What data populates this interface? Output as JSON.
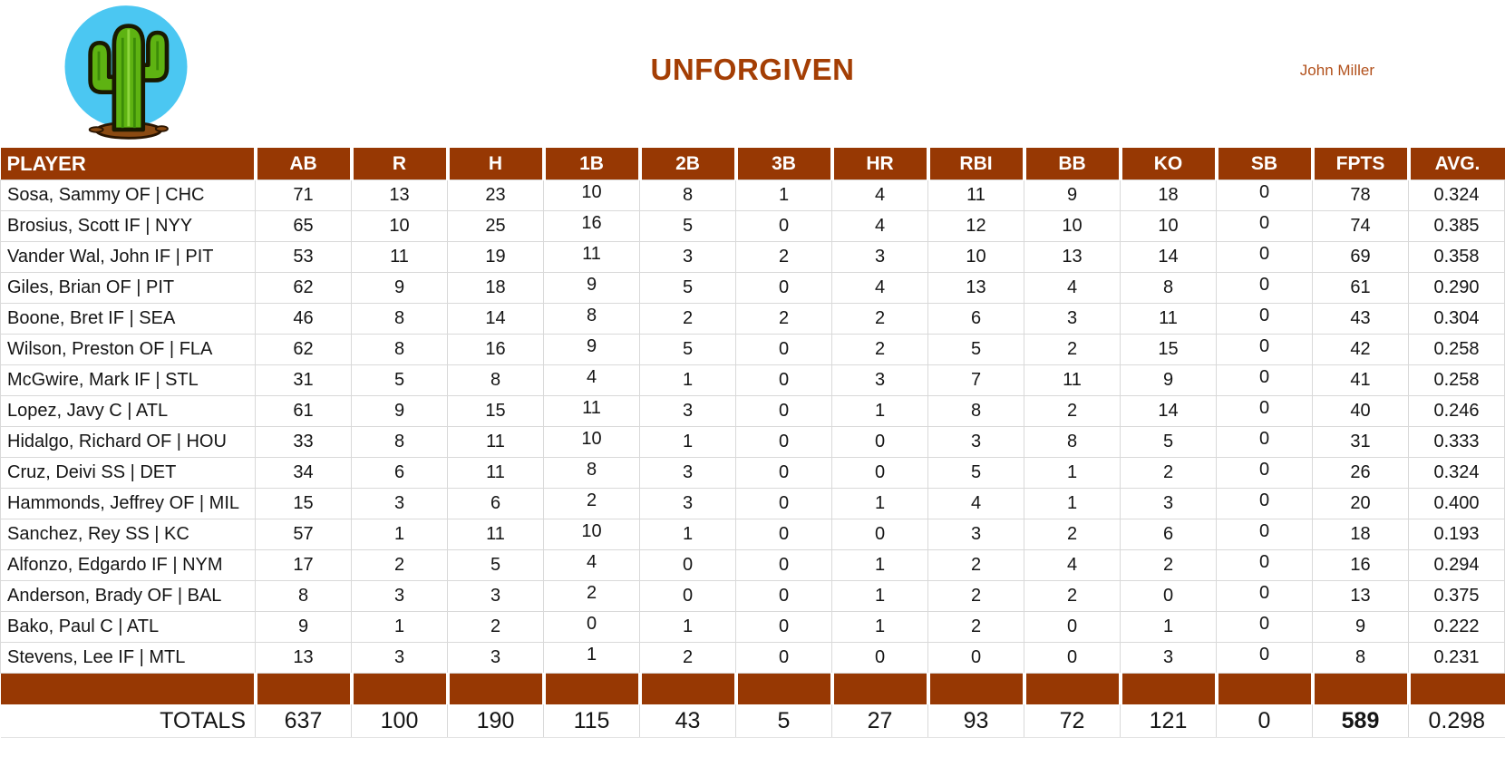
{
  "header": {
    "title": "UNFORGIVEN",
    "owner": "John Miller",
    "logo_description": "cactus-clipart-on-blue-circle"
  },
  "colors": {
    "header_brown": "#973803",
    "title_brown": "#A43E04",
    "owner_brown": "#B2511C",
    "gridline": "#d9d9d9",
    "logo_sky": "#4BC7F2",
    "logo_cactus": "#5EB312",
    "logo_dirt": "#8A4A12"
  },
  "table": {
    "columns": [
      "PLAYER",
      "AB",
      "R",
      "H",
      "1B",
      "2B",
      "3B",
      "HR",
      "RBI",
      "BB",
      "KO",
      "SB",
      "FPTS",
      "AVG."
    ],
    "rows": [
      {
        "player": "Sosa, Sammy OF | CHC",
        "stats": [
          71,
          13,
          23,
          10,
          8,
          1,
          4,
          11,
          9,
          18,
          0,
          78,
          "0.324"
        ]
      },
      {
        "player": "Brosius, Scott IF | NYY",
        "stats": [
          65,
          10,
          25,
          16,
          5,
          0,
          4,
          12,
          10,
          10,
          0,
          74,
          "0.385"
        ]
      },
      {
        "player": "Vander Wal, John IF | PIT",
        "stats": [
          53,
          11,
          19,
          11,
          3,
          2,
          3,
          10,
          13,
          14,
          0,
          69,
          "0.358"
        ]
      },
      {
        "player": "Giles, Brian OF | PIT",
        "stats": [
          62,
          9,
          18,
          9,
          5,
          0,
          4,
          13,
          4,
          8,
          0,
          61,
          "0.290"
        ]
      },
      {
        "player": "Boone, Bret IF | SEA",
        "stats": [
          46,
          8,
          14,
          8,
          2,
          2,
          2,
          6,
          3,
          11,
          0,
          43,
          "0.304"
        ]
      },
      {
        "player": "Wilson, Preston OF | FLA",
        "stats": [
          62,
          8,
          16,
          9,
          5,
          0,
          2,
          5,
          2,
          15,
          0,
          42,
          "0.258"
        ]
      },
      {
        "player": "McGwire, Mark IF | STL",
        "stats": [
          31,
          5,
          8,
          4,
          1,
          0,
          3,
          7,
          11,
          9,
          0,
          41,
          "0.258"
        ]
      },
      {
        "player": "Lopez, Javy C | ATL",
        "stats": [
          61,
          9,
          15,
          11,
          3,
          0,
          1,
          8,
          2,
          14,
          0,
          40,
          "0.246"
        ]
      },
      {
        "player": "Hidalgo, Richard OF | HOU",
        "stats": [
          33,
          8,
          11,
          10,
          1,
          0,
          0,
          3,
          8,
          5,
          0,
          31,
          "0.333"
        ]
      },
      {
        "player": "Cruz, Deivi SS | DET",
        "stats": [
          34,
          6,
          11,
          8,
          3,
          0,
          0,
          5,
          1,
          2,
          0,
          26,
          "0.324"
        ]
      },
      {
        "player": "Hammonds, Jeffrey OF | MIL",
        "stats": [
          15,
          3,
          6,
          2,
          3,
          0,
          1,
          4,
          1,
          3,
          0,
          20,
          "0.400"
        ]
      },
      {
        "player": "Sanchez, Rey SS | KC",
        "stats": [
          57,
          1,
          11,
          10,
          1,
          0,
          0,
          3,
          2,
          6,
          0,
          18,
          "0.193"
        ]
      },
      {
        "player": "Alfonzo, Edgardo IF | NYM",
        "stats": [
          17,
          2,
          5,
          4,
          0,
          0,
          1,
          2,
          4,
          2,
          0,
          16,
          "0.294"
        ]
      },
      {
        "player": "Anderson, Brady OF | BAL",
        "stats": [
          8,
          3,
          3,
          2,
          0,
          0,
          1,
          2,
          2,
          0,
          0,
          13,
          "0.375"
        ]
      },
      {
        "player": "Bako, Paul C | ATL",
        "stats": [
          9,
          1,
          2,
          0,
          1,
          0,
          1,
          2,
          0,
          1,
          0,
          9,
          "0.222"
        ]
      },
      {
        "player": "Stevens, Lee IF | MTL",
        "stats": [
          13,
          3,
          3,
          1,
          2,
          0,
          0,
          0,
          0,
          3,
          0,
          8,
          "0.231"
        ]
      }
    ],
    "totals": {
      "label": "TOTALS",
      "stats": [
        637,
        100,
        190,
        115,
        43,
        5,
        27,
        93,
        72,
        121,
        0,
        589,
        "0.298"
      ]
    }
  }
}
